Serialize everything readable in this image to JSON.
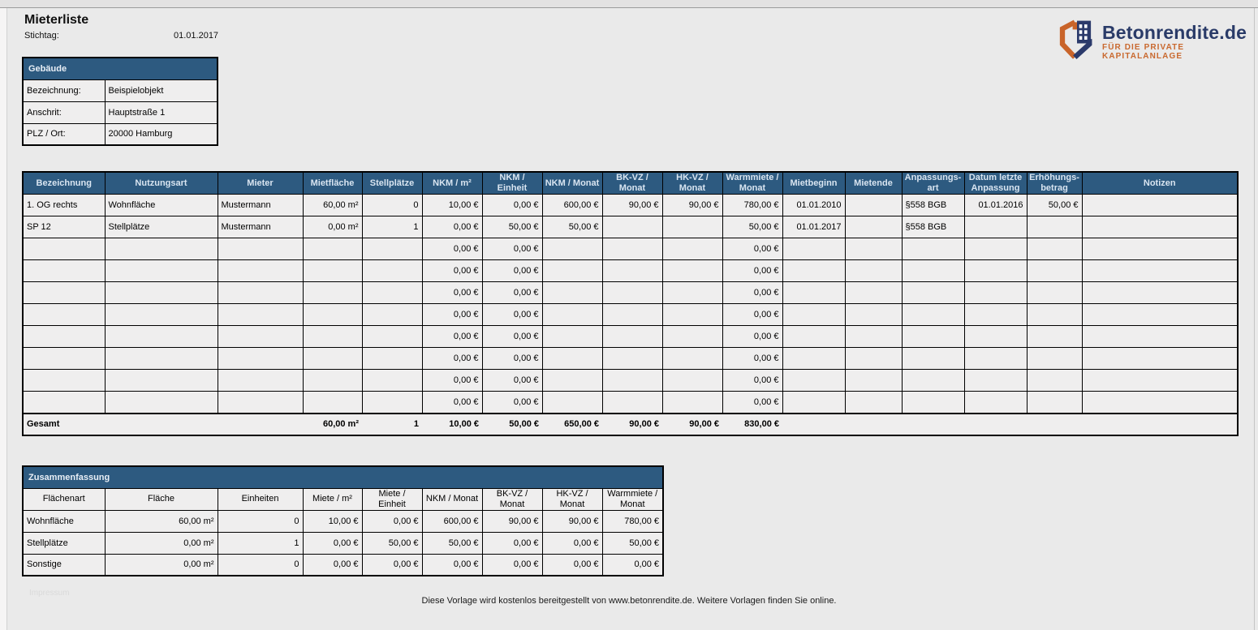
{
  "page": {
    "title": "Mieterliste",
    "stichtag_label": "Stichtag:",
    "stichtag_value": "01.01.2017",
    "footer_text": "Diese Vorlage wird kostenlos bereitgestellt von www.betonrendite.de. Weitere Vorlagen finden Sie online.",
    "watermark_text": "Impressum"
  },
  "logo": {
    "brand": "Betonrendite.de",
    "tagline": "FÜR DIE PRIVATE KAPITALANLAGE",
    "brand_color": "#2a3b68",
    "accent_color": "#c9692f"
  },
  "colors": {
    "header_blue": "#2d5a80",
    "header_text": "#d9e5f1",
    "cell_bg": "#efeeee",
    "page_bg": "#eaeaea",
    "border": "#000000"
  },
  "building_box": {
    "title": "Gebäude",
    "rows": [
      {
        "label": "Bezeichnung:",
        "value": "Beispielobjekt"
      },
      {
        "label": "Anschrit:",
        "value": "Hauptstraße 1"
      },
      {
        "label": "PLZ / Ort:",
        "value": "20000 Hamburg"
      }
    ]
  },
  "main_table": {
    "headers": [
      "Bezeichnung",
      "Nutzungsart",
      "Mieter",
      "Mietfläche",
      "Stellplätze",
      "NKM / m²",
      "NKM / Einheit",
      "NKM / Monat",
      "BK-VZ / Monat",
      "HK-VZ / Monat",
      "Warmmiete /\nMonat",
      "Mietbeginn",
      "Mietende",
      "Anpassungs-\nart",
      "Datum letzte\nAnpassung",
      "Erhöhungs-\nbetrag",
      "Notizen"
    ],
    "rows": [
      [
        "1. OG rechts",
        "Wohnfläche",
        "Mustermann",
        "60,00 m²",
        "0",
        "10,00 €",
        "0,00 €",
        "600,00 €",
        "90,00 €",
        "90,00 €",
        "780,00 €",
        "01.01.2010",
        "",
        "§558 BGB",
        "01.01.2016",
        "50,00 €",
        ""
      ],
      [
        "SP 12",
        "Stellplätze",
        "Mustermann",
        "0,00 m²",
        "1",
        "0,00 €",
        "50,00 €",
        "50,00 €",
        "",
        "",
        "50,00 €",
        "01.01.2017",
        "",
        "§558 BGB",
        "",
        "",
        ""
      ],
      [
        "",
        "",
        "",
        "",
        "",
        "0,00 €",
        "0,00 €",
        "",
        "",
        "",
        "0,00 €",
        "",
        "",
        "",
        "",
        "",
        ""
      ],
      [
        "",
        "",
        "",
        "",
        "",
        "0,00 €",
        "0,00 €",
        "",
        "",
        "",
        "0,00 €",
        "",
        "",
        "",
        "",
        "",
        ""
      ],
      [
        "",
        "",
        "",
        "",
        "",
        "0,00 €",
        "0,00 €",
        "",
        "",
        "",
        "0,00 €",
        "",
        "",
        "",
        "",
        "",
        ""
      ],
      [
        "",
        "",
        "",
        "",
        "",
        "0,00 €",
        "0,00 €",
        "",
        "",
        "",
        "0,00 €",
        "",
        "",
        "",
        "",
        "",
        ""
      ],
      [
        "",
        "",
        "",
        "",
        "",
        "0,00 €",
        "0,00 €",
        "",
        "",
        "",
        "0,00 €",
        "",
        "",
        "",
        "",
        "",
        ""
      ],
      [
        "",
        "",
        "",
        "",
        "",
        "0,00 €",
        "0,00 €",
        "",
        "",
        "",
        "0,00 €",
        "",
        "",
        "",
        "",
        "",
        ""
      ],
      [
        "",
        "",
        "",
        "",
        "",
        "0,00 €",
        "0,00 €",
        "",
        "",
        "",
        "0,00 €",
        "",
        "",
        "",
        "",
        "",
        ""
      ],
      [
        "",
        "",
        "",
        "",
        "",
        "0,00 €",
        "0,00 €",
        "",
        "",
        "",
        "0,00 €",
        "",
        "",
        "",
        "",
        "",
        ""
      ]
    ],
    "total_row": [
      "Gesamt",
      "",
      "",
      "60,00 m²",
      "1",
      "10,00 €",
      "50,00 €",
      "650,00 €",
      "90,00 €",
      "90,00 €",
      "830,00 €",
      "",
      "",
      "",
      "",
      "",
      ""
    ]
  },
  "summary_table": {
    "title": "Zusammenfassung",
    "headers": [
      "Flächenart",
      "Fläche",
      "Einheiten",
      "Miete / m²",
      "Miete / Einheit",
      "NKM / Monat",
      "BK-VZ / Monat",
      "HK-VZ / Monat",
      "Warmmiete /\nMonat"
    ],
    "rows": [
      [
        "Wohnfläche",
        "60,00 m²",
        "0",
        "10,00 €",
        "0,00 €",
        "600,00 €",
        "90,00 €",
        "90,00 €",
        "780,00 €"
      ],
      [
        "Stellplätze",
        "0,00 m²",
        "1",
        "0,00 €",
        "50,00 €",
        "50,00 €",
        "0,00 €",
        "0,00 €",
        "50,00 €"
      ],
      [
        "Sonstige",
        "0,00 m²",
        "0",
        "0,00 €",
        "0,00 €",
        "0,00 €",
        "0,00 €",
        "0,00 €",
        "0,00 €"
      ]
    ]
  }
}
